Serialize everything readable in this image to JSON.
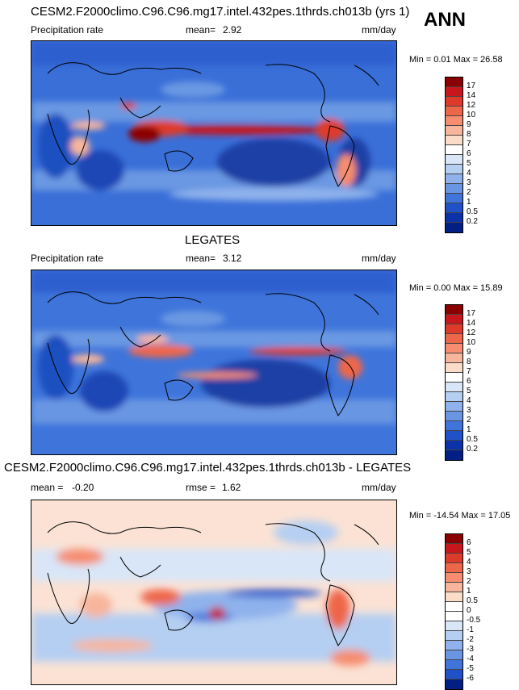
{
  "season": "ANN",
  "panels": [
    {
      "title": "CESM2.F2000climo.C96.C96.mg17.intel.432pes.1thrds.ch013b (yrs 1)",
      "variable": "Precipitation rate",
      "stat_label": "mean=",
      "stat_value": "2.92",
      "units": "mm/day",
      "minmax": "Min =  0.01 Max =  26.58",
      "levels": [
        "17",
        "14",
        "12",
        "10",
        "9",
        "8",
        "7",
        "6",
        "5",
        "4",
        "3",
        "2",
        "1",
        "0.5",
        "0.2"
      ],
      "colors": [
        "#8b0000",
        "#c8171c",
        "#de3a2a",
        "#ee6648",
        "#f58d6e",
        "#f7b59b",
        "#fadcc8",
        "#ffffff",
        "#d8e6f8",
        "#b5cff2",
        "#8fb2ec",
        "#6996e3",
        "#3f75db",
        "#1f52c9",
        "#0b32a8",
        "#041f84"
      ]
    },
    {
      "title": "LEGATES",
      "variable": "Precipitation rate",
      "stat_label": "mean=",
      "stat_value": "3.12",
      "units": "mm/day",
      "minmax": "Min =  0.00 Max =  15.89",
      "levels": [
        "17",
        "14",
        "12",
        "10",
        "9",
        "8",
        "7",
        "6",
        "5",
        "4",
        "3",
        "2",
        "1",
        "0.5",
        "0.2"
      ],
      "colors": [
        "#8b0000",
        "#c8171c",
        "#de3a2a",
        "#ee6648",
        "#f58d6e",
        "#f7b59b",
        "#fadcc8",
        "#ffffff",
        "#d8e6f8",
        "#b5cff2",
        "#8fb2ec",
        "#6996e3",
        "#3f75db",
        "#1f52c9",
        "#0b32a8",
        "#041f84"
      ]
    },
    {
      "title": "CESM2.F2000climo.C96.C96.mg17.intel.432pes.1thrds.ch013b - LEGATES",
      "mean_label": "mean =",
      "mean_value": "-0.20",
      "rmse_label": "rmse =",
      "rmse_value": "1.62",
      "units": "mm/day",
      "minmax": "Min = -14.54 Max =  17.05",
      "levels": [
        "6",
        "5",
        "4",
        "3",
        "2",
        "1",
        "0.5",
        "0",
        "-0.5",
        "-1",
        "-2",
        "-3",
        "-4",
        "-5",
        "-6"
      ],
      "colors": [
        "#8b0000",
        "#c8171c",
        "#de3a2a",
        "#ee6648",
        "#f58d6e",
        "#f7b59b",
        "#fadcc8",
        "#ffffff",
        "#ffffff",
        "#d8e6f8",
        "#b5cff2",
        "#8fb2ec",
        "#6996e3",
        "#3f75db",
        "#1f52c9",
        "#041f84"
      ]
    }
  ]
}
